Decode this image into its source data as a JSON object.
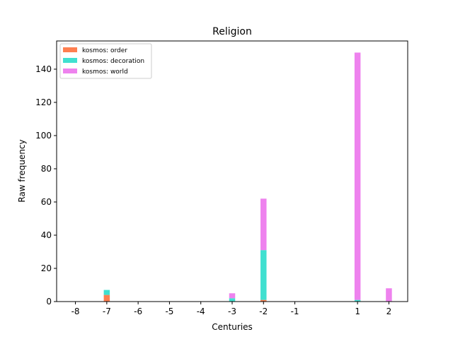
{
  "chart_data": {
    "type": "bar",
    "stacked": true,
    "title": "Religion",
    "xlabel": "Centuries",
    "ylabel": "Raw frequency",
    "x": [
      -8,
      -7,
      -6,
      -5,
      -4,
      -3,
      -2,
      -1,
      1,
      2
    ],
    "x_tick_labels": [
      "-8",
      "-7",
      "-6",
      "-5",
      "-4",
      "-3",
      "-2",
      "-1",
      "1",
      "2"
    ],
    "ylim": [
      0,
      157
    ],
    "y_ticks": [
      0,
      20,
      40,
      60,
      80,
      100,
      120,
      140
    ],
    "grid": false,
    "legend_position": "top-left",
    "series": [
      {
        "name": "kosmos: order",
        "color": "#ff7f50",
        "values": [
          0,
          4,
          0,
          0,
          0,
          0,
          1,
          0,
          0,
          0
        ]
      },
      {
        "name": "kosmos: decoration",
        "color": "#40e0d0",
        "values": [
          0,
          3,
          0,
          0,
          0,
          2,
          30,
          0,
          1,
          0
        ]
      },
      {
        "name": "kosmos: world",
        "color": "#ee82ee",
        "values": [
          0,
          0,
          0,
          0,
          0,
          3,
          31,
          0,
          149,
          8
        ]
      }
    ]
  }
}
